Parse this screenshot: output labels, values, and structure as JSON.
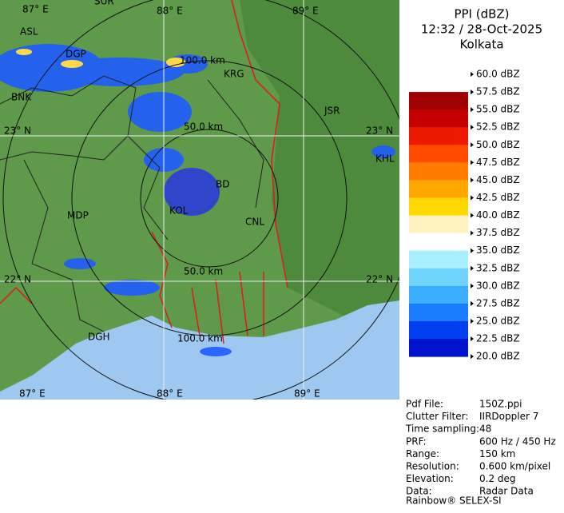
{
  "header": {
    "title": "PPI (dBZ)",
    "time": "12:32 / 28-Oct-2025",
    "site": "Kolkata"
  },
  "legend": {
    "labels": [
      "60.0 dBZ",
      "57.5 dBZ",
      "55.0 dBZ",
      "52.5 dBZ",
      "50.0 dBZ",
      "47.5 dBZ",
      "45.0 dBZ",
      "42.5 dBZ",
      "40.0 dBZ",
      "37.5 dBZ",
      "35.0 dBZ",
      "32.5 dBZ",
      "30.0 dBZ",
      "27.5 dBZ",
      "25.0 dBZ",
      "22.5 dBZ",
      "20.0 dBZ"
    ],
    "colors": [
      "#ffffff",
      "#a00000",
      "#c40000",
      "#ee1a00",
      "#ff4a00",
      "#ff7c00",
      "#ffa800",
      "#ffd800",
      "#fff4c0",
      "#ffffff",
      "#a8f0ff",
      "#70d4ff",
      "#3caeff",
      "#1a7cff",
      "#0040f0",
      "#0014d0",
      "#000090"
    ]
  },
  "info": {
    "rows": [
      [
        "Pdf File:",
        "150Z.ppi"
      ],
      [
        "Clutter Filter:",
        "IIRDoppler 7"
      ],
      [
        "Time sampling:",
        "48"
      ],
      [
        "PRF:",
        "600 Hz / 450 Hz"
      ],
      [
        "Range:",
        "150 km"
      ],
      [
        "Resolution:",
        "0.600 km/pixel"
      ],
      [
        "Elevation:",
        "0.2 deg"
      ],
      [
        "Data:",
        "Radar Data"
      ]
    ],
    "footer": "Rainbow® SELEX-SI"
  },
  "map": {
    "grid_top": [
      "87° E",
      "88° E",
      "89° E"
    ],
    "grid_bottom": [
      "87° E",
      "88° E",
      "89° E"
    ],
    "grid_left": [
      "23° N",
      "22° N"
    ],
    "grid_right": [
      "23° N",
      "22° N"
    ],
    "rings": [
      "100.0 km",
      "50.0 km",
      "50.0 km",
      "100.0 km"
    ],
    "places": [
      "SUR",
      "ASL",
      "DGP",
      "BNK",
      "KRG",
      "JSR",
      "KHL",
      "MDP",
      "BD",
      "KOL",
      "CNL",
      "DGH"
    ]
  }
}
